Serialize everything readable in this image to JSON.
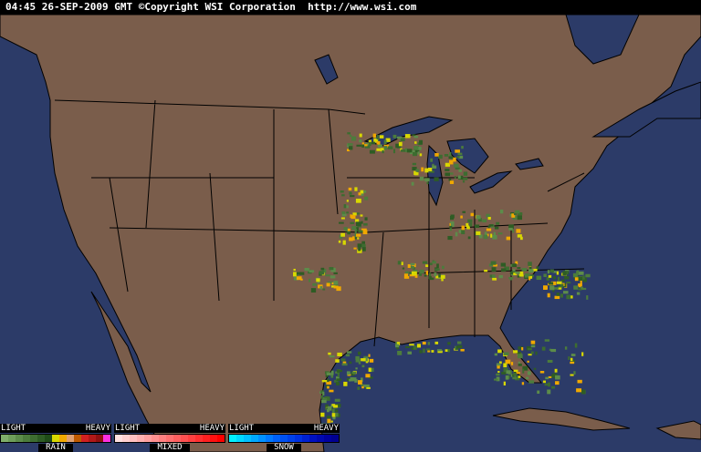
{
  "header": {
    "text": "04:45 26-SEP-2009 GMT ©Copyright WSI Corporation  http://www.wsi.com"
  },
  "colors": {
    "ocean": "#2c3b68",
    "land": "#7a5d4b",
    "borders": "#000000",
    "lakes": "#2c3b68"
  },
  "legend": [
    {
      "light": "LIGHT",
      "heavy": "HEAVY",
      "name": "RAIN",
      "colors": [
        "#7fae6a",
        "#6e9e5a",
        "#5c8c4a",
        "#4c7c3c",
        "#3d6c30",
        "#2e5c24",
        "#1f4c18",
        "#d8d800",
        "#f0a800",
        "#e0a070",
        "#c05a00",
        "#d02020",
        "#b01818",
        "#901010",
        "#ff30e0"
      ]
    },
    {
      "light": "LIGHT",
      "heavy": "HEAVY",
      "name": "MIXED",
      "colors": [
        "#ffe0e0",
        "#ffd0d0",
        "#ffc0c0",
        "#ffb0b0",
        "#ffa0a0",
        "#ff9090",
        "#ff8080",
        "#ff7070",
        "#ff6060",
        "#ff5050",
        "#ff4040",
        "#ff3030",
        "#ff2020",
        "#ff1010",
        "#ff0000"
      ]
    },
    {
      "light": "LIGHT",
      "heavy": "HEAVY",
      "name": "SNOW",
      "colors": [
        "#00f0ff",
        "#00d8ff",
        "#00c0ff",
        "#00a8ff",
        "#0090ff",
        "#0078ff",
        "#0060f8",
        "#0050f0",
        "#0040e8",
        "#0030e0",
        "#0020d0",
        "#0010c0",
        "#0008b0",
        "#0000a0",
        "#000090"
      ]
    }
  ]
}
